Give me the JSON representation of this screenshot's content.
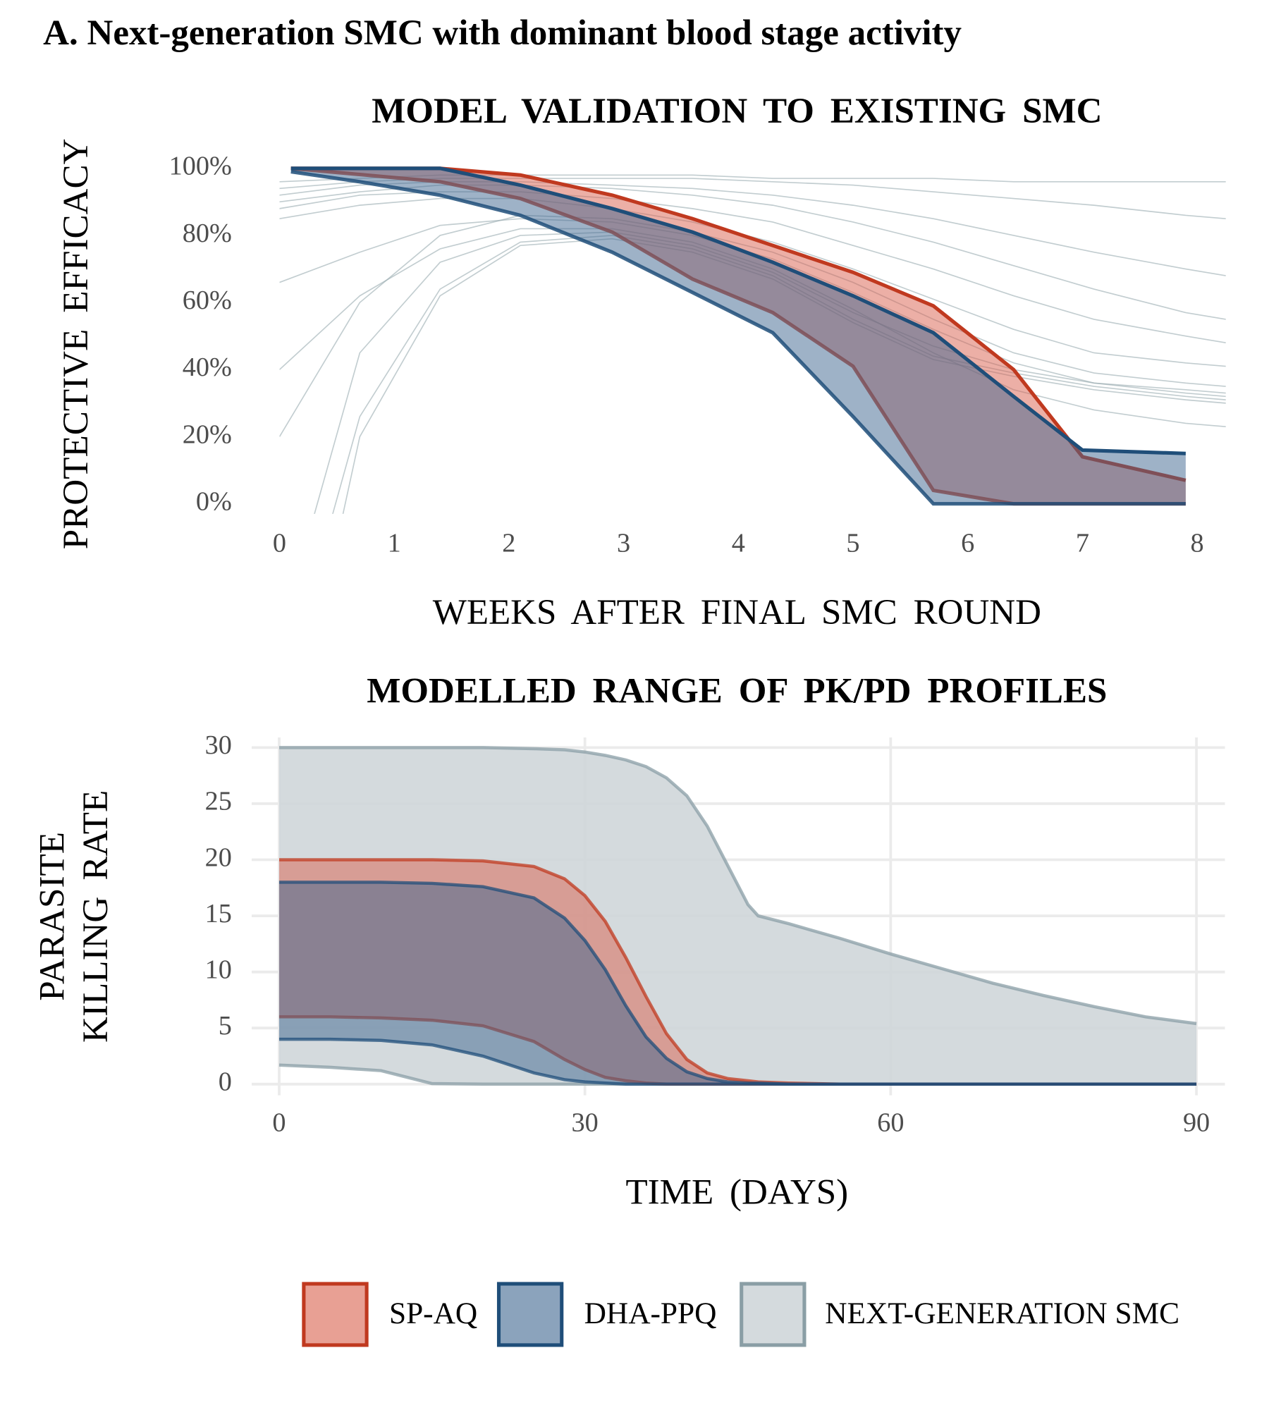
{
  "title": "A. Next-generation SMC with dominant blood stage activity",
  "chart_data": [
    {
      "type": "band-line",
      "title": "MODEL VALIDATION TO EXISTING SMC",
      "x_label": "WEEKS AFTER FINAL SMC ROUND",
      "y_label": "PROTECTIVE EFFICACY",
      "xlim": [
        0,
        8.25
      ],
      "ylim": [
        -3,
        101
      ],
      "grid": false,
      "xticks": [
        0,
        1,
        2,
        3,
        4,
        5,
        6,
        7,
        8
      ],
      "yticks": [
        {
          "value": 0,
          "label": "0%"
        },
        {
          "value": 20,
          "label": "20%"
        },
        {
          "value": 40,
          "label": "40%"
        },
        {
          "value": 60,
          "label": "60%"
        },
        {
          "value": 80,
          "label": "80%"
        },
        {
          "value": 100,
          "label": "100%"
        }
      ],
      "x": [
        0,
        0.7,
        1.4,
        2.1,
        2.9,
        3.6,
        4.3,
        5.0,
        5.7,
        6.4,
        7.1,
        7.9,
        8.25
      ],
      "lines": {
        "color": "#9aabb1",
        "values": [
          [
            96,
            97,
            98,
            98,
            98,
            98,
            97,
            97,
            97,
            96,
            96,
            96,
            96
          ],
          [
            94,
            96,
            97,
            97,
            97,
            97,
            96,
            95,
            93,
            91,
            89,
            86,
            85
          ],
          [
            92,
            95,
            96,
            96,
            95,
            94,
            92,
            89,
            85,
            80,
            75,
            70,
            68
          ],
          [
            90,
            93,
            95,
            95,
            94,
            92,
            89,
            84,
            78,
            71,
            64,
            57,
            55
          ],
          [
            88,
            92,
            93,
            93,
            91,
            88,
            84,
            77,
            70,
            62,
            55,
            50,
            48
          ],
          [
            85,
            89,
            91,
            91,
            88,
            84,
            78,
            70,
            61,
            52,
            45,
            42,
            41
          ],
          [
            66,
            75,
            83,
            85,
            84,
            80,
            73,
            63,
            52,
            42,
            36,
            33,
            32
          ],
          [
            40,
            62,
            76,
            82,
            82,
            78,
            70,
            58,
            45,
            34,
            28,
            24,
            23
          ],
          [
            -60,
            26,
            64,
            78,
            80,
            76,
            68,
            55,
            44,
            39,
            35,
            32,
            31
          ],
          [
            -90,
            20,
            62,
            77,
            79,
            75,
            67,
            54,
            43,
            38,
            34,
            31,
            30
          ],
          [
            -40,
            45,
            72,
            80,
            81,
            77,
            69,
            57,
            47,
            40,
            36,
            34,
            33
          ],
          [
            20,
            60,
            80,
            86,
            85,
            81,
            75,
            66,
            55,
            45,
            39,
            36,
            35
          ]
        ]
      },
      "series": [
        {
          "color": "#c0391f",
          "fill": "#d9604d",
          "x": [
            0.1,
            1.4,
            2.1,
            2.9,
            3.6,
            4.3,
            5.0,
            5.7,
            6.4,
            7.0,
            7.9
          ],
          "upper": [
            100,
            100,
            98,
            92,
            85,
            77,
            69,
            59,
            40,
            14,
            7
          ],
          "lower": [
            100,
            96,
            91,
            81,
            67,
            57,
            41,
            4,
            0,
            0,
            0
          ]
        },
        {
          "color": "#1f4e79",
          "fill": "#3d6690",
          "x": [
            0.1,
            0.7,
            1.4,
            2.1,
            2.9,
            3.6,
            4.3,
            5.0,
            5.7,
            6.4,
            7.0,
            7.9
          ],
          "upper": [
            100,
            100,
            100,
            95,
            88,
            81,
            72,
            62,
            51,
            32,
            16,
            15
          ],
          "lower": [
            99,
            96,
            92,
            86,
            75,
            63,
            51,
            26,
            0,
            0,
            0,
            0
          ]
        }
      ]
    },
    {
      "type": "band-line",
      "title": "MODELLED RANGE OF PK/PD PROFILES",
      "x_label": "TIME (DAYS)",
      "y_label": [
        "PARASITE",
        "KILLING RATE"
      ],
      "xlim": [
        -2.7,
        92.8
      ],
      "ylim": [
        -1,
        30.9
      ],
      "grid": true,
      "xticks": [
        0,
        30,
        60,
        90
      ],
      "yticks": [
        0,
        5,
        10,
        15,
        20,
        25,
        30
      ],
      "x": [
        0,
        5,
        10,
        15,
        20,
        25,
        28,
        30,
        32,
        34,
        36,
        38,
        40,
        42,
        44,
        46,
        47,
        50,
        55,
        60,
        65,
        70,
        75,
        80,
        85,
        90
      ],
      "series": [
        {
          "name": "NEXT-GENERATION SMC",
          "color": "#8a9ea5",
          "fill": "#cfd6d9",
          "upper": [
            30,
            30,
            30,
            30,
            30,
            29.9,
            29.8,
            29.6,
            29.3,
            28.9,
            28.3,
            27.3,
            25.7,
            23,
            19.5,
            16,
            15,
            14.3,
            13,
            11.6,
            10.3,
            9,
            7.9,
            6.9,
            6,
            5.4
          ],
          "lower": [
            1.7,
            1.5,
            1.2,
            0.05,
            0,
            0,
            0,
            0,
            0,
            0,
            0,
            0,
            0,
            0,
            0,
            0,
            0,
            0,
            0,
            0,
            0,
            0,
            0,
            0,
            0,
            0
          ]
        },
        {
          "name": "SP-AQ",
          "color": "#c0391f",
          "fill": "#d9604d",
          "upper": [
            20,
            20,
            20,
            20,
            19.9,
            19.4,
            18.3,
            16.8,
            14.5,
            11.3,
            7.8,
            4.5,
            2.2,
            1,
            0.5,
            0.3,
            0.2,
            0.1,
            0,
            0,
            0,
            0,
            0,
            0,
            0,
            0
          ],
          "lower": [
            6,
            6,
            5.9,
            5.7,
            5.2,
            3.8,
            2.2,
            1.3,
            0.6,
            0.3,
            0.1,
            0,
            0,
            0,
            0,
            0,
            0,
            0,
            0,
            0,
            0,
            0,
            0,
            0,
            0,
            0
          ]
        },
        {
          "name": "DHA-PPQ",
          "color": "#1f4e79",
          "fill": "#3d6690",
          "upper": [
            18,
            18,
            18,
            17.9,
            17.6,
            16.6,
            14.8,
            12.8,
            10.2,
            7,
            4.2,
            2.3,
            1.1,
            0.5,
            0.2,
            0.1,
            0.1,
            0,
            0,
            0,
            0,
            0,
            0,
            0,
            0,
            0
          ],
          "lower": [
            4,
            4,
            3.9,
            3.5,
            2.5,
            1,
            0.4,
            0.2,
            0.1,
            0,
            0,
            0,
            0,
            0,
            0,
            0,
            0,
            0,
            0,
            0,
            0,
            0,
            0,
            0,
            0,
            0
          ]
        }
      ]
    }
  ]
}
